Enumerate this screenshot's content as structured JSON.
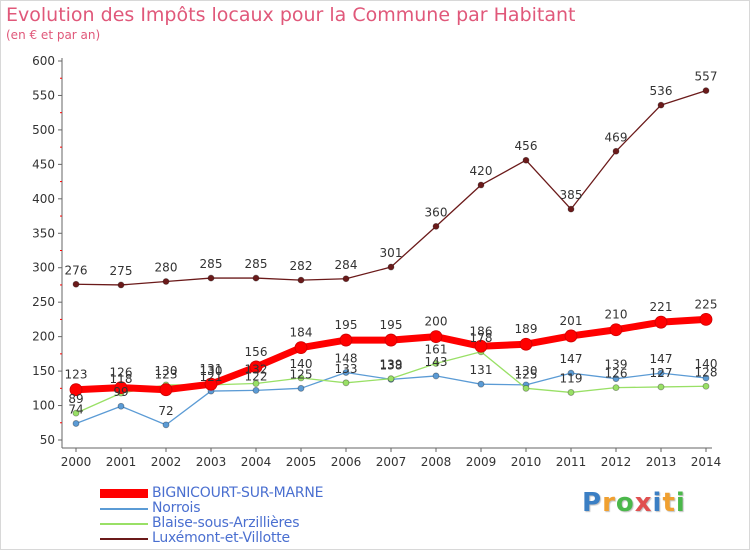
{
  "title": "Evolution des Impôts locaux pour la Commune par Habitant",
  "subtitle": "(en € et par an)",
  "logo": {
    "text": "Proxiti",
    "colors": [
      "#3b7fc4",
      "#f0a030",
      "#4bb84b",
      "#e05050",
      "#3b7fc4",
      "#f0a030",
      "#4bb84b"
    ]
  },
  "chart_data": {
    "type": "line",
    "x": [
      2000,
      2001,
      2002,
      2003,
      2004,
      2005,
      2006,
      2007,
      2008,
      2009,
      2010,
      2011,
      2012,
      2013,
      2014
    ],
    "ylim": [
      50,
      600
    ],
    "yticks": [
      50,
      100,
      150,
      200,
      250,
      300,
      350,
      400,
      450,
      500,
      550,
      600
    ],
    "grid": false,
    "legend_position": "bottom-left",
    "series": [
      {
        "name": "BIGNICOURT-SUR-MARNE",
        "color": "#ff0000",
        "values": [
          123,
          126,
          123,
          131,
          156,
          184,
          195,
          195,
          200,
          186,
          189,
          201,
          210,
          221,
          225
        ],
        "labels": [
          "123",
          "126",
          "123",
          "131",
          "156",
          "184",
          "195",
          "195",
          "200",
          "186",
          "189",
          "201",
          "210",
          "221",
          "225"
        ]
      },
      {
        "name": "Norrois",
        "color": "#5b9bd5",
        "values": [
          74,
          99,
          72,
          121,
          122,
          125,
          148,
          138,
          143,
          131,
          130,
          147,
          139,
          147,
          140
        ],
        "labels": [
          "74",
          "99",
          "72",
          "121",
          "122",
          "125",
          "148",
          "138",
          "143",
          "131",
          "130",
          "147",
          "139",
          "147",
          "140"
        ]
      },
      {
        "name": "Blaise-sous-Arzillières",
        "color": "#99e066",
        "values": [
          89,
          118,
          130,
          130,
          132,
          140,
          133,
          139,
          161,
          178,
          125,
          119,
          126,
          127,
          128
        ],
        "labels": [
          "89",
          "118",
          "130",
          "130",
          "132",
          "140",
          "133",
          "139",
          "161",
          "178",
          "125",
          "119",
          "126",
          "127",
          "128"
        ]
      },
      {
        "name": "Luxémont-et-Villotte",
        "color": "#6b1a1a",
        "values": [
          276,
          275,
          280,
          285,
          285,
          282,
          284,
          301,
          360,
          420,
          456,
          385,
          469,
          536,
          557
        ],
        "labels": [
          "276",
          "275",
          "280",
          "285",
          "285",
          "282",
          "284",
          "301",
          "360",
          "420",
          "456",
          "385",
          "469",
          "536",
          "557"
        ]
      }
    ]
  }
}
